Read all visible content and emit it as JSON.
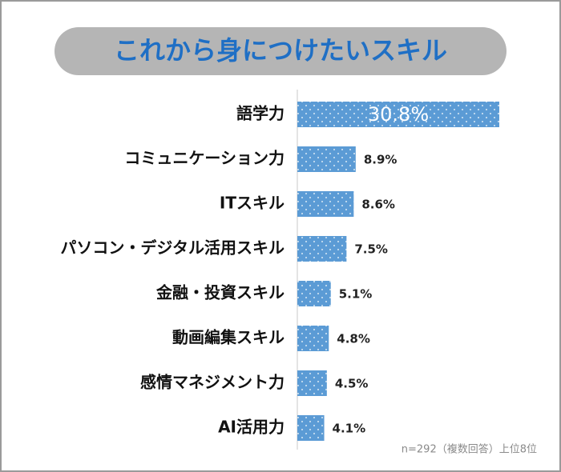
{
  "chart_data": {
    "type": "bar",
    "orientation": "horizontal",
    "title": "これから身につけたいスキル",
    "categories": [
      "語学力",
      "コミュニケーション力",
      "ITスキル",
      "パソコン・デジタル活用スキル",
      "金融・投資スキル",
      "動画編集スキル",
      "感情マネジメント力",
      "AI活用力"
    ],
    "values": [
      30.8,
      8.9,
      8.6,
      7.5,
      5.1,
      4.8,
      4.5,
      4.1
    ],
    "value_labels": [
      "30.8%",
      "8.9%",
      "8.6%",
      "7.5%",
      "5.1%",
      "4.8%",
      "4.5%",
      "4.1%"
    ],
    "color": "#5b9bd5",
    "note": "n=292（複数回答）上位8位"
  }
}
